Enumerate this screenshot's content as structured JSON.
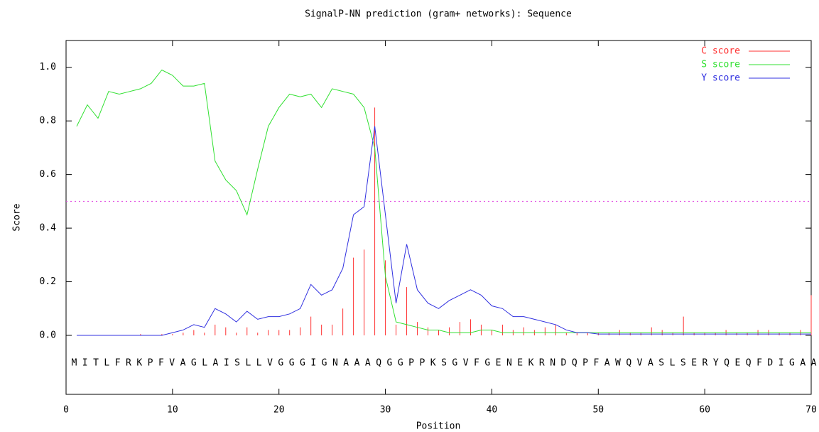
{
  "chart_data": {
    "type": "line",
    "title": "SignalP-NN prediction (gram+ networks): Sequence",
    "x_label": "Position",
    "y_label": "Score",
    "sequence": "MITLFRKPFVAGLAISLLVGGGIGNAAAQGGPPKSGVFGENEKRNDQPFAWQVASLSERYQEQFDIGAA",
    "x": [
      1,
      2,
      3,
      4,
      5,
      6,
      7,
      8,
      9,
      10,
      11,
      12,
      13,
      14,
      15,
      16,
      17,
      18,
      19,
      20,
      21,
      22,
      23,
      24,
      25,
      26,
      27,
      28,
      29,
      30,
      31,
      32,
      33,
      34,
      35,
      36,
      37,
      38,
      39,
      40,
      41,
      42,
      43,
      44,
      45,
      46,
      47,
      48,
      49,
      50,
      51,
      52,
      53,
      54,
      55,
      56,
      57,
      58,
      59,
      60,
      61,
      62,
      63,
      64,
      65,
      66,
      67,
      68,
      69,
      70
    ],
    "series": [
      {
        "name": "C score",
        "color": "#ff3030",
        "style": "impulses",
        "values": [
          0,
          0,
          0,
          0,
          0,
          0,
          0.005,
          0,
          0.005,
          0.005,
          0.01,
          0.02,
          0.01,
          0.04,
          0.03,
          0.01,
          0.03,
          0.01,
          0.02,
          0.02,
          0.02,
          0.03,
          0.07,
          0.04,
          0.04,
          0.1,
          0.29,
          0.32,
          0.85,
          0.28,
          0.04,
          0.18,
          0.05,
          0.03,
          0.02,
          0.03,
          0.05,
          0.06,
          0.04,
          0.02,
          0.04,
          0.02,
          0.03,
          0.02,
          0.03,
          0.04,
          0.01,
          0.01,
          0.01,
          0.01,
          0.01,
          0.02,
          0.01,
          0.01,
          0.03,
          0.02,
          0.01,
          0.07,
          0.01,
          0.01,
          0.01,
          0.02,
          0.01,
          0.01,
          0.02,
          0.02,
          0.01,
          0.01,
          0.02,
          0.15
        ]
      },
      {
        "name": "S score",
        "color": "#30e030",
        "style": "line",
        "values": [
          0.78,
          0.86,
          0.81,
          0.91,
          0.9,
          0.91,
          0.92,
          0.94,
          0.99,
          0.97,
          0.93,
          0.93,
          0.94,
          0.65,
          0.58,
          0.54,
          0.45,
          0.62,
          0.78,
          0.85,
          0.9,
          0.89,
          0.9,
          0.85,
          0.92,
          0.91,
          0.9,
          0.85,
          0.7,
          0.22,
          0.05,
          0.04,
          0.03,
          0.02,
          0.02,
          0.01,
          0.01,
          0.01,
          0.02,
          0.02,
          0.01,
          0.01,
          0.01,
          0.01,
          0.01,
          0.01,
          0.01,
          0.01,
          0.01,
          0.01,
          0.01,
          0.01,
          0.01,
          0.01,
          0.01,
          0.01,
          0.01,
          0.01,
          0.01,
          0.01,
          0.01,
          0.01,
          0.01,
          0.01,
          0.01,
          0.01,
          0.01,
          0.01,
          0.01,
          0.01
        ]
      },
      {
        "name": "Y score",
        "color": "#3030e0",
        "style": "line",
        "values": [
          0,
          0,
          0,
          0,
          0,
          0,
          0,
          0,
          0,
          0.01,
          0.02,
          0.04,
          0.03,
          0.1,
          0.08,
          0.05,
          0.09,
          0.06,
          0.07,
          0.07,
          0.08,
          0.1,
          0.19,
          0.15,
          0.17,
          0.25,
          0.45,
          0.48,
          0.78,
          0.45,
          0.12,
          0.34,
          0.17,
          0.12,
          0.1,
          0.13,
          0.15,
          0.17,
          0.15,
          0.11,
          0.1,
          0.07,
          0.07,
          0.06,
          0.05,
          0.04,
          0.02,
          0.01,
          0.01,
          0.005,
          0.005,
          0.005,
          0.005,
          0.005,
          0.005,
          0.005,
          0.005,
          0.005,
          0.005,
          0.005,
          0.005,
          0.005,
          0.005,
          0.005,
          0.005,
          0.005,
          0.005,
          0.005,
          0.005,
          0.005
        ]
      }
    ],
    "threshold": 0.5,
    "threshold_color": "#e040e0",
    "xlim": [
      0,
      70
    ],
    "ylim": [
      -0.22,
      1.1
    ],
    "xticks": [
      0,
      10,
      20,
      30,
      40,
      50,
      60,
      70
    ],
    "yticks": [
      {
        "value": 0,
        "label": "0.0"
      },
      {
        "value": 0.2,
        "label": "0.2"
      },
      {
        "value": 0.4,
        "label": "0.4"
      },
      {
        "value": 0.6,
        "label": "0.6"
      },
      {
        "value": 0.8,
        "label": "0.8"
      },
      {
        "value": 1,
        "label": "1.0"
      }
    ],
    "legend": "top-right"
  }
}
